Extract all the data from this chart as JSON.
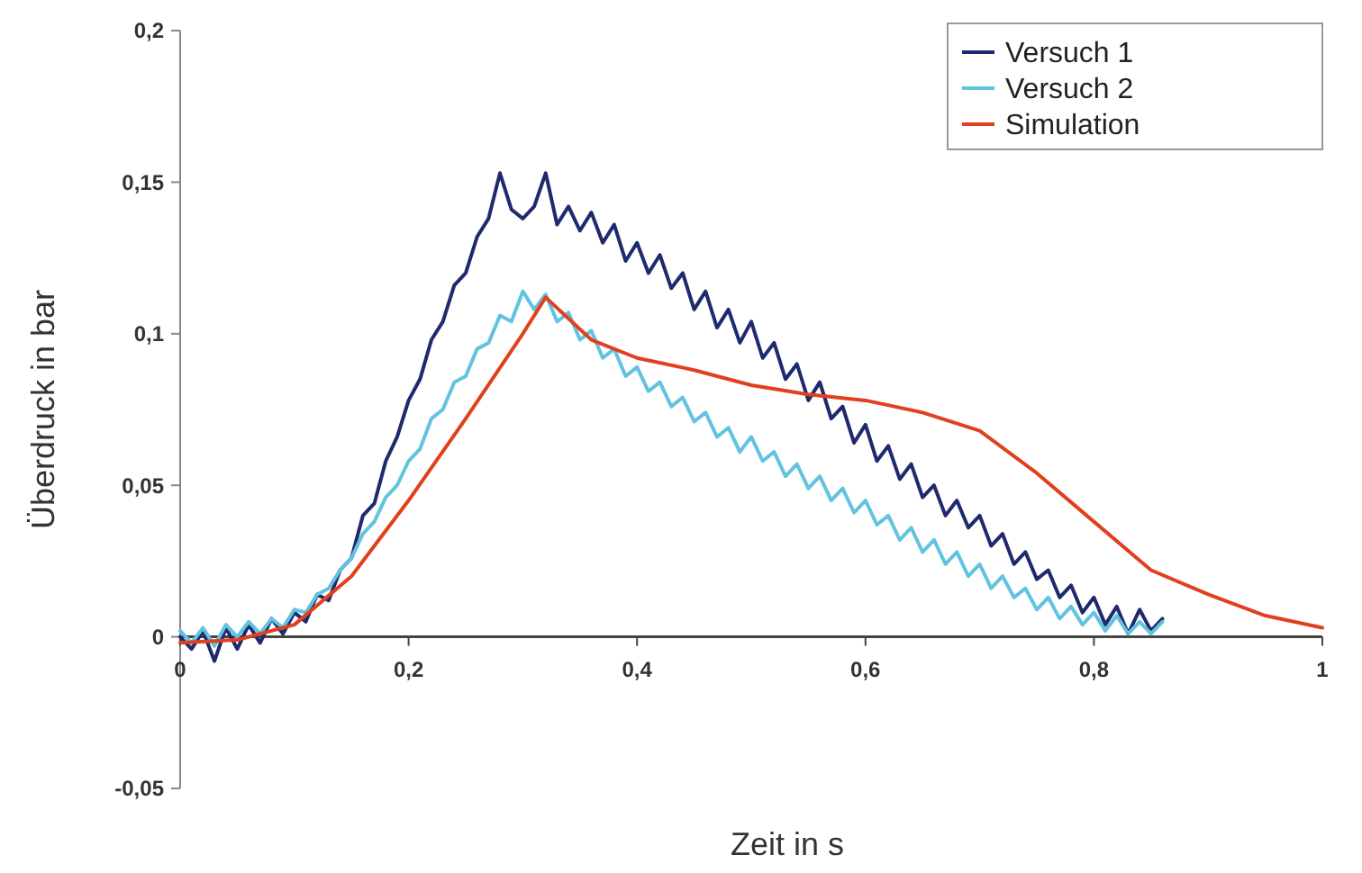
{
  "chart_data": {
    "type": "line",
    "xlabel": "Zeit in s",
    "ylabel": "Überdruck in bar",
    "xlim": [
      0,
      1
    ],
    "xticks": [
      {
        "value": 0,
        "label": "0"
      },
      {
        "value": 0.2,
        "label": "0,2"
      },
      {
        "value": 0.4,
        "label": "0,4"
      },
      {
        "value": 0.6,
        "label": "0,6"
      },
      {
        "value": 0.8,
        "label": "0,8"
      },
      {
        "value": 1,
        "label": "1"
      }
    ],
    "ylim": [
      -0.05,
      0.2
    ],
    "yticks": [
      {
        "value": -0.05,
        "label": "-0,05"
      },
      {
        "value": 0,
        "label": "0"
      },
      {
        "value": 0.05,
        "label": "0,05"
      },
      {
        "value": 0.1,
        "label": "0,1"
      },
      {
        "value": 0.15,
        "label": "0,15"
      },
      {
        "value": 0.2,
        "label": "0,2"
      }
    ],
    "grid": false,
    "legend": "top right",
    "marker": "none",
    "line_style": "solid",
    "series": [
      {
        "name": "Versuch 1",
        "color": "#1f2a6e",
        "x": [
          0,
          0.01,
          0.02,
          0.03,
          0.04,
          0.05,
          0.06,
          0.07,
          0.08,
          0.09,
          0.1,
          0.11,
          0.12,
          0.13,
          0.14,
          0.15,
          0.16,
          0.17,
          0.18,
          0.19,
          0.2,
          0.21,
          0.22,
          0.23,
          0.24,
          0.25,
          0.26,
          0.27,
          0.28,
          0.29,
          0.3,
          0.31,
          0.32,
          0.33,
          0.34,
          0.35,
          0.36,
          0.37,
          0.38,
          0.39,
          0.4,
          0.41,
          0.42,
          0.43,
          0.44,
          0.45,
          0.46,
          0.47,
          0.48,
          0.49,
          0.5,
          0.51,
          0.52,
          0.53,
          0.54,
          0.55,
          0.56,
          0.57,
          0.58,
          0.59,
          0.6,
          0.61,
          0.62,
          0.63,
          0.64,
          0.65,
          0.66,
          0.67,
          0.68,
          0.69,
          0.7,
          0.71,
          0.72,
          0.73,
          0.74,
          0.75,
          0.76,
          0.77,
          0.78,
          0.79,
          0.8,
          0.81,
          0.82,
          0.83,
          0.84,
          0.85,
          0.86
        ],
        "values": [
          0,
          -0.004,
          0.002,
          -0.008,
          0.003,
          -0.004,
          0.004,
          -0.002,
          0.006,
          0.001,
          0.008,
          0.005,
          0.014,
          0.012,
          0.022,
          0.026,
          0.04,
          0.044,
          0.058,
          0.066,
          0.078,
          0.085,
          0.098,
          0.104,
          0.116,
          0.12,
          0.132,
          0.138,
          0.153,
          0.141,
          0.138,
          0.142,
          0.153,
          0.136,
          0.142,
          0.134,
          0.14,
          0.13,
          0.136,
          0.124,
          0.13,
          0.12,
          0.126,
          0.115,
          0.12,
          0.108,
          0.114,
          0.102,
          0.108,
          0.097,
          0.104,
          0.092,
          0.097,
          0.085,
          0.09,
          0.078,
          0.084,
          0.072,
          0.076,
          0.064,
          0.07,
          0.058,
          0.063,
          0.052,
          0.057,
          0.046,
          0.05,
          0.04,
          0.045,
          0.036,
          0.04,
          0.03,
          0.034,
          0.024,
          0.028,
          0.019,
          0.022,
          0.013,
          0.017,
          0.008,
          0.013,
          0.004,
          0.01,
          0.001,
          0.009,
          0.002,
          0.006
        ]
      },
      {
        "name": "Versuch 2",
        "color": "#62c3e0",
        "x": [
          0,
          0.01,
          0.02,
          0.03,
          0.04,
          0.05,
          0.06,
          0.07,
          0.08,
          0.09,
          0.1,
          0.11,
          0.12,
          0.13,
          0.14,
          0.15,
          0.16,
          0.17,
          0.18,
          0.19,
          0.2,
          0.21,
          0.22,
          0.23,
          0.24,
          0.25,
          0.26,
          0.27,
          0.28,
          0.29,
          0.3,
          0.31,
          0.32,
          0.33,
          0.34,
          0.35,
          0.36,
          0.37,
          0.38,
          0.39,
          0.4,
          0.41,
          0.42,
          0.43,
          0.44,
          0.45,
          0.46,
          0.47,
          0.48,
          0.49,
          0.5,
          0.51,
          0.52,
          0.53,
          0.54,
          0.55,
          0.56,
          0.57,
          0.58,
          0.59,
          0.6,
          0.61,
          0.62,
          0.63,
          0.64,
          0.65,
          0.66,
          0.67,
          0.68,
          0.69,
          0.7,
          0.71,
          0.72,
          0.73,
          0.74,
          0.75,
          0.76,
          0.77,
          0.78,
          0.79,
          0.8,
          0.81,
          0.82,
          0.83,
          0.84,
          0.85,
          0.86
        ],
        "values": [
          0.002,
          -0.002,
          0.003,
          -0.003,
          0.004,
          0,
          0.005,
          0.001,
          0.006,
          0.003,
          0.009,
          0.008,
          0.014,
          0.016,
          0.022,
          0.026,
          0.034,
          0.038,
          0.046,
          0.05,
          0.058,
          0.062,
          0.072,
          0.075,
          0.084,
          0.086,
          0.095,
          0.097,
          0.106,
          0.104,
          0.114,
          0.108,
          0.113,
          0.104,
          0.107,
          0.098,
          0.101,
          0.092,
          0.095,
          0.086,
          0.089,
          0.081,
          0.084,
          0.076,
          0.079,
          0.071,
          0.074,
          0.066,
          0.069,
          0.061,
          0.066,
          0.058,
          0.061,
          0.053,
          0.057,
          0.049,
          0.053,
          0.045,
          0.049,
          0.041,
          0.045,
          0.037,
          0.04,
          0.032,
          0.036,
          0.028,
          0.032,
          0.024,
          0.028,
          0.02,
          0.024,
          0.016,
          0.02,
          0.013,
          0.016,
          0.009,
          0.013,
          0.006,
          0.01,
          0.004,
          0.008,
          0.002,
          0.007,
          0.001,
          0.005,
          0.001,
          0.005
        ]
      },
      {
        "name": "Simulation",
        "color": "#e0401e",
        "x": [
          0,
          0.05,
          0.1,
          0.15,
          0.2,
          0.25,
          0.3,
          0.32,
          0.34,
          0.36,
          0.4,
          0.45,
          0.5,
          0.55,
          0.6,
          0.65,
          0.7,
          0.75,
          0.8,
          0.85,
          0.9,
          0.95,
          1
        ],
        "values": [
          -0.002,
          -0.001,
          0.004,
          0.02,
          0.045,
          0.072,
          0.1,
          0.112,
          0.105,
          0.098,
          0.092,
          0.088,
          0.083,
          0.08,
          0.078,
          0.074,
          0.068,
          0.054,
          0.038,
          0.022,
          0.014,
          0.007,
          0.003
        ]
      }
    ]
  }
}
